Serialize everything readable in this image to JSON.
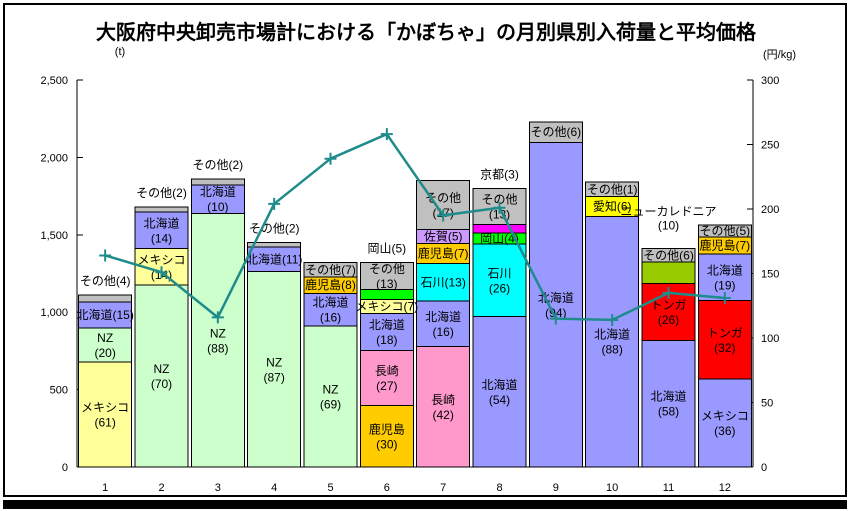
{
  "title": "大阪府中央卸売市場計における「かぼちゃ」の月別県別入荷量と平均価格",
  "left_axis": {
    "unit": "(t)",
    "max": 2500,
    "ticks": [
      "2,500",
      "2,000",
      "1,500",
      "1,000",
      "500",
      "0"
    ]
  },
  "right_axis": {
    "unit": "(円/kg)",
    "max": 300,
    "ticks": [
      "300",
      "250",
      "200",
      "150",
      "100",
      "50",
      "0"
    ]
  },
  "chart_data": {
    "type": "bar",
    "stacked": true,
    "note": "stacked bars = monthly arrivals (t) by origin, labels show percent share in parentheses; teal line = average price (円/kg, right axis)",
    "x_labels": [
      "1",
      "2",
      "3",
      "4",
      "5",
      "6",
      "7",
      "8",
      "9",
      "10",
      "11",
      "12"
    ],
    "totals_t": [
      1110,
      1680,
      1860,
      1450,
      1320,
      1320,
      1850,
      1800,
      2230,
      1840,
      1410,
      1580
    ],
    "months": [
      {
        "month": "1",
        "total": 1110,
        "segments": [
          {
            "name": "メキシコ",
            "value": 61,
            "color": "#FFFF99",
            "label": "in2"
          },
          {
            "name": "NZ",
            "value": 20,
            "color": "#CCFFCC",
            "label": "in2"
          },
          {
            "name": "北海道",
            "value": 15,
            "color": "#9999FF",
            "label": "in1"
          },
          {
            "name": "その他",
            "value": 4,
            "color": "#C0C0C0",
            "label": "above"
          }
        ]
      },
      {
        "month": "2",
        "total": 1680,
        "segments": [
          {
            "name": "NZ",
            "value": 70,
            "color": "#CCFFCC",
            "label": "in2"
          },
          {
            "name": "メキシコ",
            "value": 14,
            "color": "#FFFF99",
            "label": "in2"
          },
          {
            "name": "北海道",
            "value": 14,
            "color": "#9999FF",
            "label": "in2"
          },
          {
            "name": "その他",
            "value": 2,
            "color": "#C0C0C0",
            "label": "above"
          }
        ]
      },
      {
        "month": "3",
        "total": 1860,
        "segments": [
          {
            "name": "NZ",
            "value": 88,
            "color": "#CCFFCC",
            "label": "in2"
          },
          {
            "name": "北海道",
            "value": 10,
            "color": "#9999FF",
            "label": "in2"
          },
          {
            "name": "その他",
            "value": 2,
            "color": "#C0C0C0",
            "label": "above"
          }
        ]
      },
      {
        "month": "4",
        "total": 1450,
        "segments": [
          {
            "name": "NZ",
            "value": 87,
            "color": "#CCFFCC",
            "label": "in2"
          },
          {
            "name": "北海道",
            "value": 11,
            "color": "#9999FF",
            "label": "in1"
          },
          {
            "name": "その他",
            "value": 2,
            "color": "#C0C0C0",
            "label": "above"
          }
        ]
      },
      {
        "month": "5",
        "total": 1320,
        "segments": [
          {
            "name": "NZ",
            "value": 69,
            "color": "#CCFFCC",
            "label": "in2"
          },
          {
            "name": "北海道",
            "value": 16,
            "color": "#9999FF",
            "label": "in2"
          },
          {
            "name": "鹿児島",
            "value": 8,
            "color": "#FFCC00",
            "label": "in1"
          },
          {
            "name": "その他",
            "value": 7,
            "color": "#C0C0C0",
            "label": "in1"
          }
        ]
      },
      {
        "month": "6",
        "total": 1320,
        "segments": [
          {
            "name": "鹿児島",
            "value": 30,
            "color": "#FFCC00",
            "label": "in2"
          },
          {
            "name": "長崎",
            "value": 27,
            "color": "#FF99CC",
            "label": "in2"
          },
          {
            "name": "北海道",
            "value": 18,
            "color": "#9999FF",
            "label": "in2"
          },
          {
            "name": "メキシコ",
            "value": 7,
            "color": "#FFFF99",
            "label": "in1"
          },
          {
            "name": "岡山",
            "value": 5,
            "color": "#00FF00",
            "label": "above"
          },
          {
            "name": "その他",
            "value": 13,
            "color": "#C0C0C0",
            "label": "in2"
          }
        ]
      },
      {
        "month": "7",
        "total": 1850,
        "segments": [
          {
            "name": "長崎",
            "value": 42,
            "color": "#FF99CC",
            "label": "in2"
          },
          {
            "name": "北海道",
            "value": 16,
            "color": "#9999FF",
            "label": "in2"
          },
          {
            "name": "石川",
            "value": 13,
            "color": "#00FFFF",
            "label": "in1"
          },
          {
            "name": "鹿児島",
            "value": 7,
            "color": "#FFCC00",
            "label": "in1"
          },
          {
            "name": "佐賀",
            "value": 5,
            "color": "#CC99FF",
            "label": "in1"
          },
          {
            "name": "その他",
            "value": 17,
            "color": "#C0C0C0",
            "label": "in2"
          }
        ]
      },
      {
        "month": "8",
        "total": 1800,
        "segments": [
          {
            "name": "北海道",
            "value": 54,
            "color": "#9999FF",
            "label": "in2"
          },
          {
            "name": "石川",
            "value": 26,
            "color": "#00FFFF",
            "label": "in2"
          },
          {
            "name": "岡山",
            "value": 4,
            "color": "#00FF00",
            "label": "in1"
          },
          {
            "name": "京都",
            "value": 3,
            "color": "#FF00FF",
            "label": "above"
          },
          {
            "name": "その他",
            "value": 13,
            "color": "#C0C0C0",
            "label": "in2"
          }
        ]
      },
      {
        "month": "9",
        "total": 2230,
        "segments": [
          {
            "name": "北海道",
            "value": 94,
            "color": "#9999FF",
            "label": "in2"
          },
          {
            "name": "その他",
            "value": 6,
            "color": "#C0C0C0",
            "label": "in1"
          }
        ]
      },
      {
        "month": "10",
        "total": 1840,
        "segments": [
          {
            "name": "北海道",
            "value": 88,
            "color": "#9999FF",
            "label": "in2"
          },
          {
            "name": "愛知",
            "value": 6,
            "h": 7,
            "color": "#FFFF00",
            "label": "in1"
          },
          {
            "name": "その他",
            "value": 1,
            "h": 5,
            "color": "#C0C0C0",
            "label": "in1"
          }
        ]
      },
      {
        "month": "11",
        "total": 1410,
        "segments": [
          {
            "name": "北海道",
            "value": 58,
            "color": "#9999FF",
            "label": "in2"
          },
          {
            "name": "トンガ",
            "value": 26,
            "color": "#FF0000",
            "label": "in2"
          },
          {
            "name": "ニューカレドニア",
            "value": 10,
            "color": "#99CC00",
            "label": "above2"
          },
          {
            "name": "その他",
            "value": 6,
            "color": "#C0C0C0",
            "label": "in1"
          }
        ]
      },
      {
        "month": "12",
        "total": 1580,
        "segments": [
          {
            "name": "メキシコ",
            "value": 36,
            "color": "#9999FF",
            "label": "in2"
          },
          {
            "name": "トンガ",
            "value": 32,
            "color": "#FF0000",
            "label": "in2"
          },
          {
            "name": "北海道",
            "value": 19,
            "color": "#9999FF",
            "label": "in2"
          },
          {
            "name": "鹿児島",
            "value": 7,
            "color": "#FFCC00",
            "label": "in1"
          },
          {
            "name": "その他",
            "value": 5,
            "color": "#C0C0C0",
            "label": "in1"
          }
        ]
      }
    ],
    "price_line": {
      "name": "平均価格",
      "unit": "円/kg",
      "color": "#1F8B8B",
      "values": [
        164,
        151,
        116,
        204,
        239,
        258,
        195,
        201,
        115,
        114,
        135,
        131
      ]
    }
  }
}
